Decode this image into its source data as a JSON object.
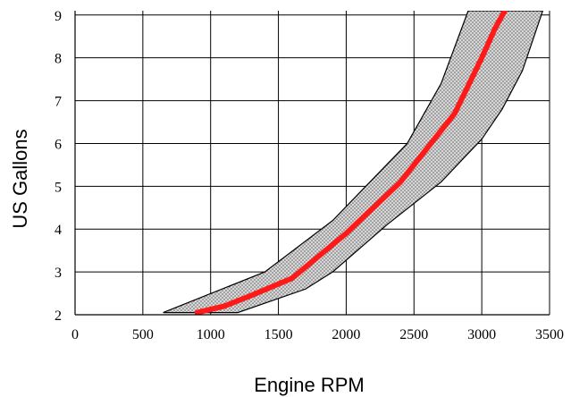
{
  "chart_data": {
    "type": "area",
    "title": "",
    "xlabel": "Engine RPM",
    "ylabel": "US Gallons",
    "xlim": [
      0,
      3500
    ],
    "ylim": [
      2,
      9.1
    ],
    "x_ticks": [
      0,
      500,
      1000,
      1500,
      2000,
      2500,
      3000,
      3500
    ],
    "y_ticks": [
      2,
      3,
      4,
      5,
      6,
      7,
      8,
      9
    ],
    "grid": true,
    "legend": "none",
    "band": {
      "upper": {
        "x": [
          650,
          1400,
          1900,
          2450,
          2700,
          2900,
          3450
        ],
        "y": [
          2.05,
          3.0,
          4.2,
          6.0,
          7.4,
          9.1,
          9.1
        ]
      },
      "lower": {
        "x": [
          650,
          1200,
          1700,
          1900,
          2300,
          2700,
          3000,
          3150,
          3300,
          3450
        ],
        "y": [
          2.05,
          2.05,
          2.6,
          3.0,
          4.1,
          5.1,
          6.1,
          6.8,
          7.7,
          9.1
        ]
      },
      "fill_color": "#d8d8d8",
      "edge_color": "#000000"
    },
    "series": [
      {
        "x": [
          900,
          1100,
          1300,
          1600,
          2000,
          2400,
          2800,
          3000,
          3100,
          3170
        ],
        "y": [
          2.05,
          2.2,
          2.45,
          2.85,
          3.9,
          5.1,
          6.7,
          8.0,
          8.7,
          9.1
        ],
        "color": "#ff1a1a"
      }
    ]
  }
}
